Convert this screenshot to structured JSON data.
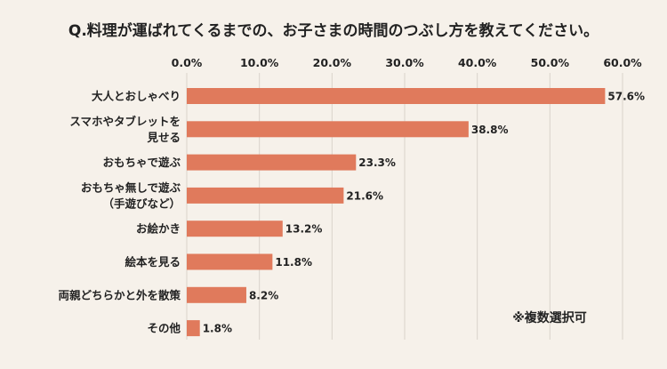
{
  "chart_data": {
    "type": "bar",
    "orientation": "horizontal",
    "title": "Q.料理が運ばれてくるまでの、お子さまの時間のつぶし方を教えてください。",
    "note": "※複数選択可",
    "xlim": [
      0,
      60
    ],
    "ticks": [
      "0.0%",
      "10.0%",
      "20.0%",
      "30.0%",
      "40.0%",
      "50.0%",
      "60.0%"
    ],
    "tick_values": [
      0,
      10,
      20,
      30,
      40,
      50,
      60
    ],
    "grid": true,
    "categories": [
      [
        "大人とおしゃべり"
      ],
      [
        "スマホやタブレットを",
        "見せる"
      ],
      [
        "おもちゃで遊ぶ"
      ],
      [
        "おもちゃ無しで遊ぶ",
        "（手遊びなど）"
      ],
      [
        "お絵かき"
      ],
      [
        "絵本を見る"
      ],
      [
        "両親どちらかと外を散策"
      ],
      [
        "その他"
      ]
    ],
    "values": [
      57.6,
      38.8,
      23.3,
      21.6,
      13.2,
      11.8,
      8.2,
      1.8
    ],
    "value_labels": [
      "57.6%",
      "38.8%",
      "23.3%",
      "21.6%",
      "13.2%",
      "11.8%",
      "8.2%",
      "1.8%"
    ],
    "colors": {
      "bar": "#e07a5c",
      "background": "#f6f1ea",
      "grid": "#d9d3cb"
    }
  }
}
